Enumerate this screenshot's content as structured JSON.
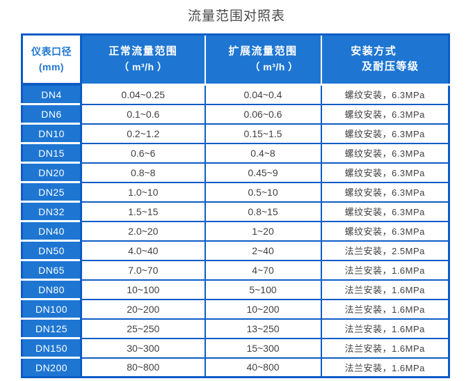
{
  "title": "流量范围对照表",
  "colors": {
    "fill_blue": "#1e76d2",
    "border_blue": "#0c5cc6",
    "text_dark": "#404040",
    "header_text": "#ffffff",
    "title_text": "#4a4a4a"
  },
  "table": {
    "headers": [
      {
        "line1": "仪表口径",
        "line2": "(mm)"
      },
      {
        "line1": "正常流量范围",
        "line2": "（ m³/h ）"
      },
      {
        "line1": "扩展流量范围",
        "line2": "（ m³/h ）"
      },
      {
        "line1": "安装方式",
        "line2": "及耐压等级"
      }
    ],
    "rows": [
      {
        "dn": "DN4",
        "normal": "0.04~0.25",
        "extended": "0.04~0.4",
        "install": "螺纹安装，6.3MPa"
      },
      {
        "dn": "DN6",
        "normal": "0.1~0.6",
        "extended": "0.06~0.6",
        "install": "螺纹安装，6.3MPa"
      },
      {
        "dn": "DN10",
        "normal": "0.2~1.2",
        "extended": "0.15~1.5",
        "install": "螺纹安装，6.3MPa"
      },
      {
        "dn": "DN15",
        "normal": "0.6~6",
        "extended": "0.4~8",
        "install": "螺纹安装，6.3MPa"
      },
      {
        "dn": "DN20",
        "normal": "0.8~8",
        "extended": "0.45~9",
        "install": "螺纹安装，6.3MPa"
      },
      {
        "dn": "DN25",
        "normal": "1.0~10",
        "extended": "0.5~10",
        "install": "螺纹安装，6.3MPa"
      },
      {
        "dn": "DN32",
        "normal": "1.5~15",
        "extended": "0.8~15",
        "install": "螺纹安装，6.3MPa"
      },
      {
        "dn": "DN40",
        "normal": "2.0~20",
        "extended": "1~20",
        "install": "螺纹安装，6.3MPa"
      },
      {
        "dn": "DN50",
        "normal": "4.0~40",
        "extended": "2~40",
        "install": "法兰安装，2.5MPa"
      },
      {
        "dn": "DN65",
        "normal": "7.0~70",
        "extended": "4~70",
        "install": "法兰安装，1.6MPa"
      },
      {
        "dn": "DN80",
        "normal": "10~100",
        "extended": "5~100",
        "install": "法兰安装，1.6MPa"
      },
      {
        "dn": "DN100",
        "normal": "20~200",
        "extended": "10~200",
        "install": "法兰安装，1.6MPa"
      },
      {
        "dn": "DN125",
        "normal": "25~250",
        "extended": "13~250",
        "install": "法兰安装，1.6MPa"
      },
      {
        "dn": "DN150",
        "normal": "30~300",
        "extended": "15~300",
        "install": "法兰安装，1.6MPa"
      },
      {
        "dn": "DN200",
        "normal": "80~800",
        "extended": "40~800",
        "install": "法兰安装，1.6MPa"
      }
    ]
  }
}
